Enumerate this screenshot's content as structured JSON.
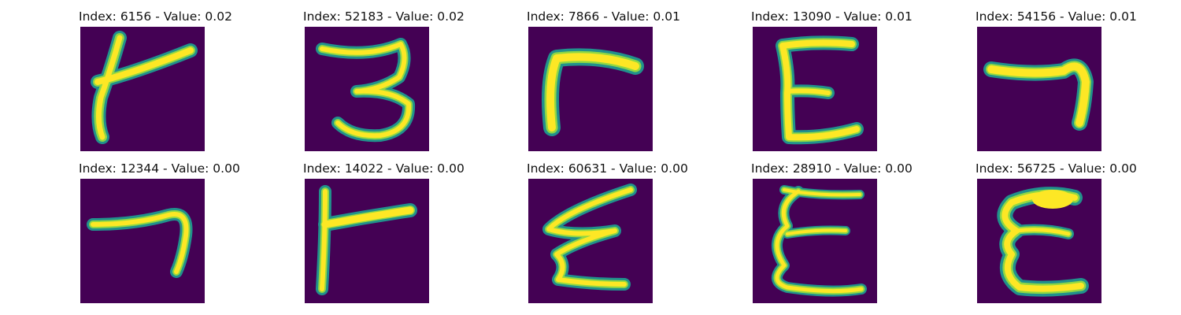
{
  "colors": {
    "background": "#440154",
    "stroke_core": "#fde725",
    "stroke_mid": "#8fd744",
    "stroke_edge": "#21918c"
  },
  "panels": [
    {
      "title": "Index: 6156 - Value: 0.02",
      "glyph": "glyph-1"
    },
    {
      "title": "Index: 52183 - Value: 0.02",
      "glyph": "glyph-2"
    },
    {
      "title": "Index: 7866 - Value: 0.01",
      "glyph": "glyph-3"
    },
    {
      "title": "Index: 13090 - Value: 0.01",
      "glyph": "glyph-4"
    },
    {
      "title": "Index: 54156 - Value: 0.01",
      "glyph": "glyph-5"
    },
    {
      "title": "Index: 12344 - Value: 0.00",
      "glyph": "glyph-6"
    },
    {
      "title": "Index: 14022 - Value: 0.00",
      "glyph": "glyph-7"
    },
    {
      "title": "Index: 60631 - Value: 0.00",
      "glyph": "glyph-8"
    },
    {
      "title": "Index: 28910 - Value: 0.00",
      "glyph": "glyph-9"
    },
    {
      "title": "Index: 56725 - Value: 0.00",
      "glyph": "glyph-10"
    }
  ]
}
